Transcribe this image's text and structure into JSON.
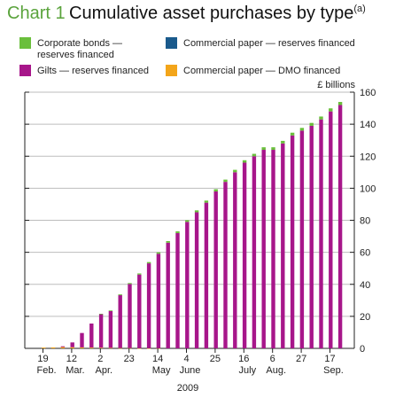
{
  "title": {
    "number": "Chart 1",
    "text": "Cumulative asset purchases by type",
    "footnote_mark": "(a)"
  },
  "colors": {
    "corporate_bonds": "#6abf3c",
    "commercial_paper_reserves": "#1a5a8c",
    "gilts": "#a7168a",
    "commercial_paper_dmo": "#f3a51a"
  },
  "legend": [
    {
      "key": "corporate_bonds",
      "lines": [
        "Corporate bonds —",
        "reserves financed"
      ]
    },
    {
      "key": "gilts",
      "lines": [
        "Gilts — reserves financed"
      ]
    },
    {
      "key": "commercial_paper_reserves",
      "lines": [
        "Commercial paper — reserves financed"
      ]
    },
    {
      "key": "commercial_paper_dmo",
      "lines": [
        "Commercial paper — DMO financed"
      ]
    }
  ],
  "chart_data": {
    "type": "bar",
    "stacked": true,
    "ylabel": "£ billions",
    "ylim": [
      0,
      160
    ],
    "yticks": [
      0,
      20,
      40,
      60,
      80,
      100,
      120,
      140,
      160
    ],
    "xlabel": "2009",
    "x_ticks": [
      {
        "day": "19",
        "month": "Feb."
      },
      {
        "day": "12",
        "month": "Mar."
      },
      {
        "day": "2",
        "month": "Apr."
      },
      {
        "day": "23",
        "month": ""
      },
      {
        "day": "14",
        "month": "May"
      },
      {
        "day": "4",
        "month": "June"
      },
      {
        "day": "25",
        "month": ""
      },
      {
        "day": "16",
        "month": "July"
      },
      {
        "day": "6",
        "month": "Aug."
      },
      {
        "day": "27",
        "month": ""
      },
      {
        "day": "17",
        "month": "Sep."
      }
    ],
    "series": [
      {
        "name": "Gilts — reserves financed",
        "key": "gilts",
        "values": [
          0,
          0,
          0,
          0.5,
          3,
          9,
          15,
          21,
          23,
          33,
          40,
          46,
          53,
          59,
          66,
          72,
          79,
          85,
          91,
          98,
          104,
          110,
          116,
          120,
          124,
          124,
          128,
          133,
          136,
          139,
          143,
          148,
          152
        ]
      },
      {
        "name": "Corporate bonds — reserves financed",
        "key": "corporate_bonds",
        "values": [
          0,
          0,
          0,
          0,
          0,
          0,
          0,
          0.2,
          0.4,
          0.5,
          0.6,
          0.7,
          0.8,
          0.9,
          1.0,
          1.1,
          1.1,
          1.2,
          1.3,
          1.4,
          1.4,
          1.5,
          1.5,
          1.5,
          1.6,
          1.6,
          1.6,
          1.7,
          1.7,
          1.8,
          1.8,
          1.9,
          1.9
        ]
      },
      {
        "name": "Commercial paper — reserves financed",
        "key": "commercial_paper_reserves",
        "values": [
          0,
          0,
          0,
          0,
          0,
          0,
          0,
          0,
          0,
          0,
          0,
          0,
          0,
          0,
          0,
          0,
          0,
          0,
          0,
          0,
          0,
          0,
          0,
          0,
          0,
          0,
          0,
          0,
          0,
          0,
          0,
          0,
          0
        ]
      },
      {
        "name": "Commercial paper — DMO financed",
        "key": "commercial_paper_dmo",
        "values": [
          0,
          0.5,
          0.6,
          0.8,
          0.7,
          0.6,
          0.5,
          0.4,
          0.3,
          0.2,
          0.2,
          0.1,
          0.1,
          0.1,
          0,
          0,
          0,
          0,
          0,
          0,
          0,
          0,
          0,
          0,
          0,
          0,
          0,
          0,
          0,
          0,
          0,
          0,
          0
        ]
      }
    ]
  }
}
